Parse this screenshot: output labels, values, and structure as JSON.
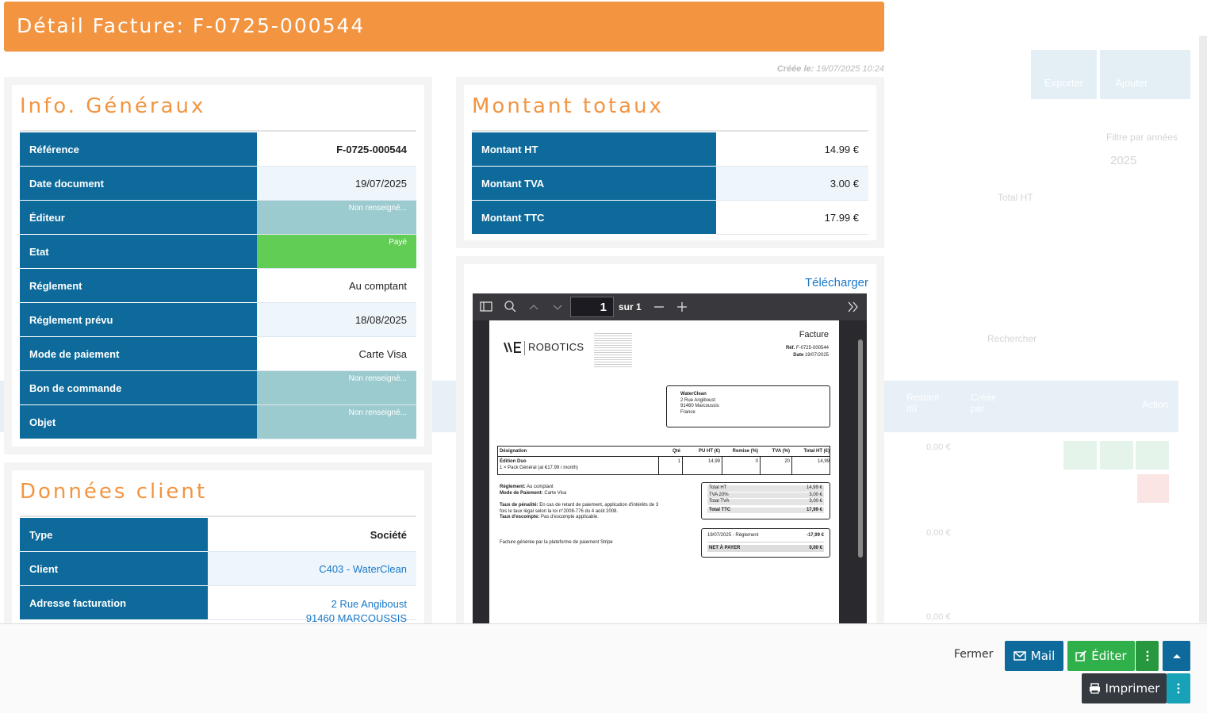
{
  "header": {
    "title": "Détail Facture: F-0725-000544",
    "created_label": "Créée le:",
    "created_value": "19/07/2025 10:24"
  },
  "general": {
    "title": "Info. Généraux",
    "rows": [
      [
        "Référence",
        "F-0725-000544"
      ],
      [
        "Date document",
        "19/07/2025"
      ],
      [
        "Éditeur",
        "Non renseigné..."
      ],
      [
        "Etat",
        "Payé"
      ],
      [
        "Réglement",
        "Au comptant"
      ],
      [
        "Réglement prévu",
        "18/08/2025"
      ],
      [
        "Mode de paiement",
        "Carte Visa"
      ],
      [
        "Bon de commande",
        "Non renseigné..."
      ],
      [
        "Objet",
        "Non renseigné..."
      ]
    ]
  },
  "totals": {
    "title": "Montant totaux",
    "rows": [
      [
        "Montant HT",
        "14.99 €"
      ],
      [
        "Montant TVA",
        "3.00 €"
      ],
      [
        "Montant TTC",
        "17.99 €"
      ]
    ]
  },
  "client": {
    "title": "Données client",
    "rows": [
      [
        "Type",
        "Société"
      ],
      [
        "Client",
        "C403 - WaterClean"
      ],
      [
        "Adresse facturation",
        "2 Rue Angiboust",
        "91460 MARCOUSSIS"
      ]
    ]
  },
  "viewer": {
    "download": "Télécharger",
    "page": "1",
    "page_count": "sur 1"
  },
  "invoice": {
    "brand": "ROBOTICS",
    "doc_title": "Facture",
    "ref_label": "Réf.",
    "ref": "F-0725-000544",
    "date_label": "Date",
    "date": "19/07/2025",
    "recipient": [
      "WaterClean",
      "2 Rue Angiboust",
      "91460 Marcoussis",
      "France"
    ],
    "columns": [
      "Désignation",
      "Qté",
      "PU HT (€)",
      "Remise (%)",
      "TVA (%)",
      "Total HT (€)"
    ],
    "line": {
      "name": "Édition Duo",
      "detail": "1 × Pack Général (at €17.99 / month)",
      "qty": "1",
      "unit": "14,99",
      "discount": "0",
      "vat": "20",
      "total": "14,99"
    },
    "notes": [
      [
        "Règlement:",
        "Au comptant"
      ],
      [
        "Mode de Paiement:",
        "Carte Visa"
      ],
      [
        "Taux de pénalité:",
        "En cas de retard de paiement, application d'intérêts de 3 fois le taux légal selon la loi n°2008-776 du 4 août 2008."
      ],
      [
        "Taux d'escompte:",
        "Pas d'escompte applicable."
      ]
    ],
    "footer_note": "Facture générée par la plateforme de paiement Stripe",
    "sums": [
      [
        "Total HT",
        "14,99 €"
      ],
      [
        "TVA 20%",
        "3,00 €"
      ],
      [
        "Total TVA",
        "3,00 €"
      ],
      [
        "Total TTC",
        "17,99 €"
      ]
    ],
    "payment": [
      "19/07/2025 - Règlement",
      "-17,99 €"
    ],
    "due": [
      "NET À PAYER",
      "0,00 €"
    ]
  },
  "footer": {
    "close": "Fermer",
    "mail": "Mail",
    "edit": "Éditer",
    "print": "Imprimer"
  },
  "background": {
    "export": "Exporter",
    "add": "Ajouter",
    "filter": "Filtre par années",
    "year": "2025",
    "total_ht": "Total HT",
    "search": "Rechercher",
    "remaining": "Restant dû",
    "created_by": "Créée par",
    "action": "Action",
    "amounts": [
      "0,00 €",
      "0,00 €",
      "0,00 €"
    ]
  }
}
